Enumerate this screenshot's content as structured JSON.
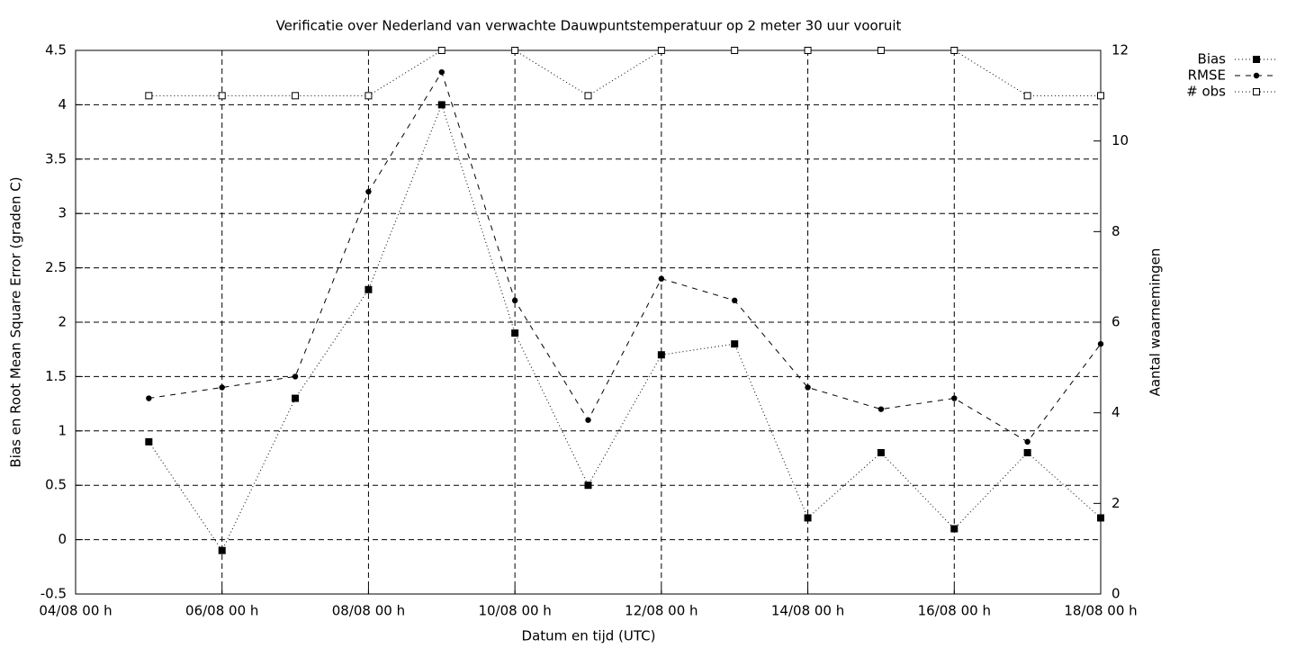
{
  "chart_data": {
    "type": "line",
    "title": "Verificatie over Nederland van verwachte Dauwpuntstemperatuur op 2 meter 30 uur vooruit",
    "x_label": "Datum en tijd (UTC)",
    "y_label": "Bias en Root Mean Square Error (graden C)",
    "y2_label": "Aantal waarnemingen",
    "x": [
      5,
      6,
      7,
      8,
      9,
      10,
      11,
      12,
      13,
      14,
      15,
      16,
      17,
      18
    ],
    "xlim": [
      4,
      18
    ],
    "xticks": [
      {
        "value": 4,
        "label": "04/08 00 h"
      },
      {
        "value": 6,
        "label": "06/08 00 h"
      },
      {
        "value": 8,
        "label": "08/08 00 h"
      },
      {
        "value": 10,
        "label": "10/08 00 h"
      },
      {
        "value": 12,
        "label": "12/08 00 h"
      },
      {
        "value": 14,
        "label": "14/08 00 h"
      },
      {
        "value": 16,
        "label": "16/08 00 h"
      },
      {
        "value": 18,
        "label": "18/08 00 h"
      }
    ],
    "ylim": [
      -0.5,
      4.5
    ],
    "yticks": [
      -0.5,
      0,
      0.5,
      1,
      1.5,
      2,
      2.5,
      3,
      3.5,
      4,
      4.5
    ],
    "y2lim": [
      0,
      12
    ],
    "y2ticks": [
      0,
      2,
      4,
      6,
      8,
      10,
      12
    ],
    "grid": true,
    "legend": "right",
    "series": [
      {
        "name": "Bias",
        "color": "#000000",
        "line_style": "dotted",
        "marker": "square-filled",
        "values": [
          0.9,
          -0.1,
          1.3,
          2.3,
          4.0,
          1.9,
          0.5,
          1.7,
          1.8,
          0.2,
          0.8,
          0.1,
          0.8,
          0.2
        ]
      },
      {
        "name": "RMSE",
        "color": "#000000",
        "line_style": "dashed",
        "marker": "circle-filled",
        "values": [
          1.3,
          1.4,
          1.5,
          3.2,
          4.3,
          2.2,
          1.1,
          2.4,
          2.2,
          1.4,
          1.2,
          1.3,
          0.9,
          1.8
        ]
      },
      {
        "name": "# obs",
        "color": "#000000",
        "line_style": "dotted",
        "marker": "square-open",
        "axis": "y2",
        "values": [
          11,
          11,
          11,
          11,
          12,
          12,
          11,
          12,
          12,
          12,
          12,
          12,
          11,
          11
        ]
      }
    ]
  }
}
